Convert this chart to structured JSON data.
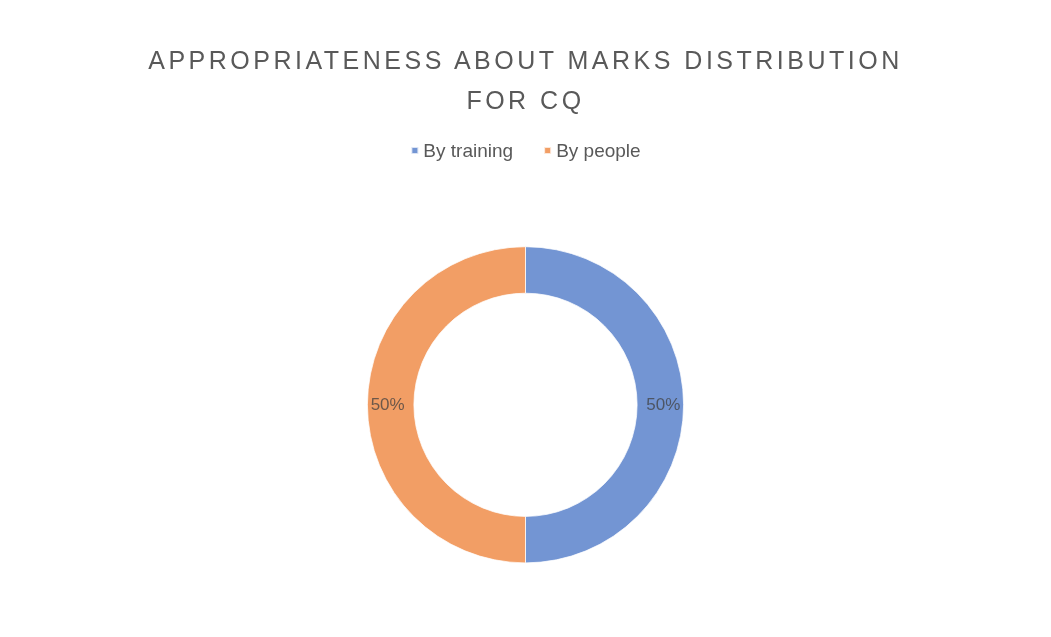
{
  "chart_data": {
    "type": "donut",
    "title": "APPROPRIATENESS ABOUT MARKS DISTRIBUTION FOR CQ",
    "categories": [
      "By training",
      "By people"
    ],
    "values": [
      50,
      50
    ],
    "colors": [
      "#4472c4",
      "#ed7d31"
    ],
    "value_labels": [
      "50%",
      "50%"
    ],
    "legend": "top"
  }
}
